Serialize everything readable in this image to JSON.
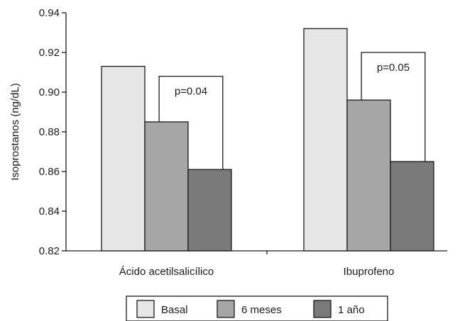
{
  "chart_data": {
    "type": "bar",
    "title": "",
    "xlabel": "",
    "ylabel": "Isoprostanos (ng/dL)",
    "ylim": [
      0.82,
      0.94
    ],
    "yticks": [
      "0.82",
      "0.84",
      "0.86",
      "0.88",
      "0.90",
      "0.92",
      "0.94"
    ],
    "categories": [
      "Ácido acetilsalicílico",
      "Ibuprofeno"
    ],
    "series": [
      {
        "name": "Basal",
        "values": [
          0.913,
          0.932
        ],
        "color": "#e6e6e6"
      },
      {
        "name": "6 meses",
        "values": [
          0.885,
          0.896
        ],
        "color": "#a6a6a6"
      },
      {
        "name": "1 año",
        "values": [
          0.861,
          0.865
        ],
        "color": "#7a7a7a"
      }
    ],
    "annotations": [
      {
        "text": "p=0.04",
        "category": 0,
        "bracket_top": 0.908
      },
      {
        "text": "p=0.05",
        "category": 1,
        "bracket_top": 0.92
      }
    ],
    "grid": false,
    "legend": "bottom"
  }
}
